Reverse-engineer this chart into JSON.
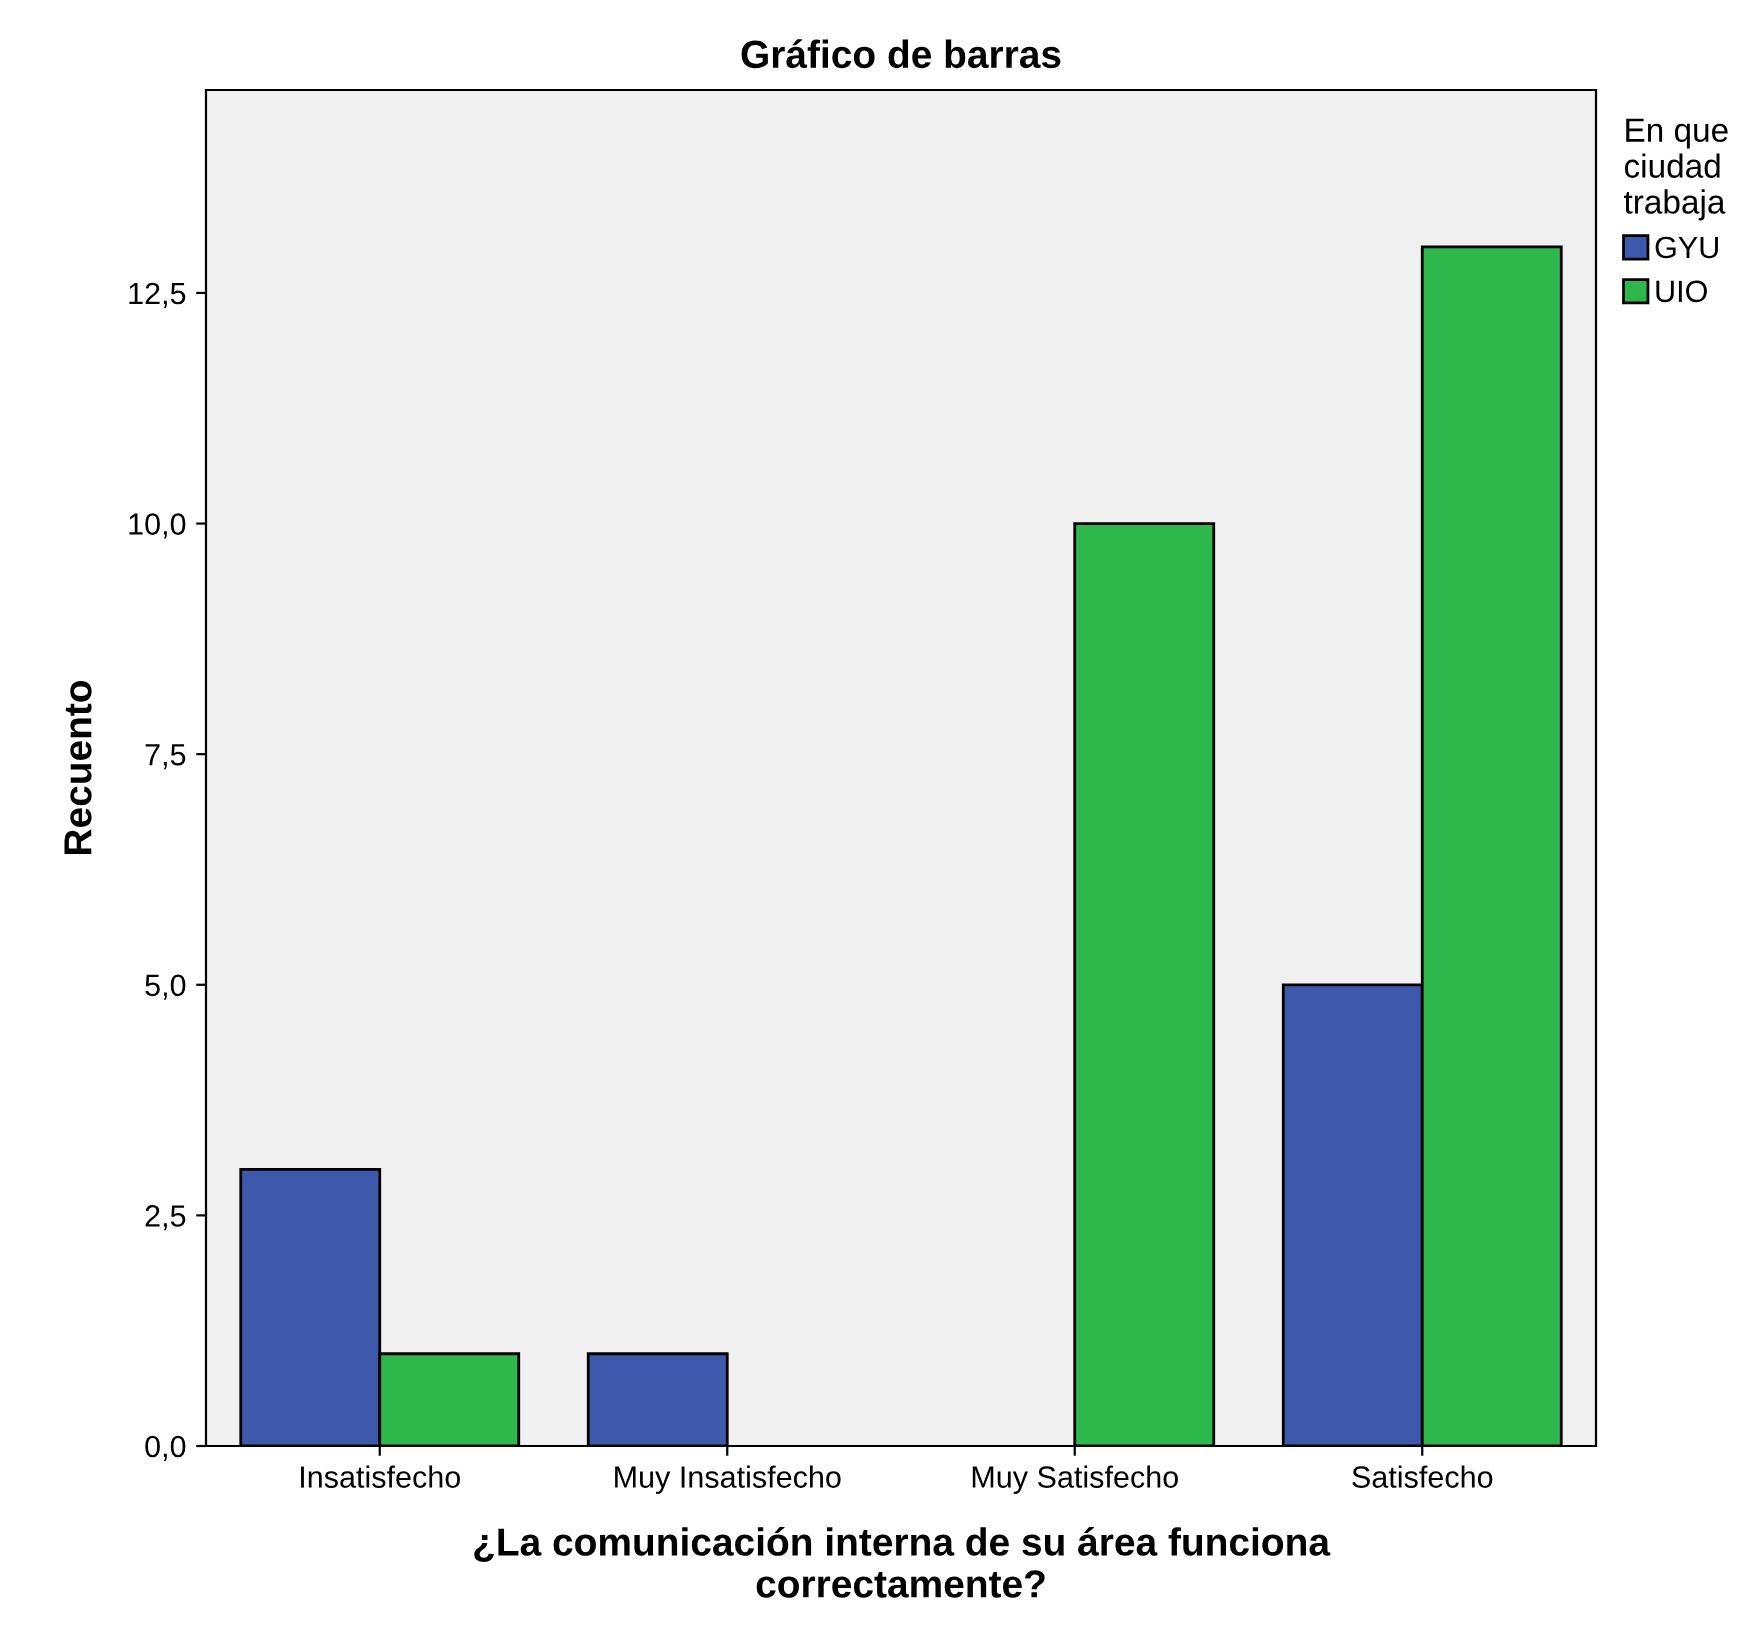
{
  "chart_data": {
    "type": "bar",
    "title": "Gráfico de barras",
    "xlabel": "¿La comunicación interna de su área funciona\ncorrectamente?",
    "ylabel": "Recuento",
    "legend_title": "En que\nciudad\ntrabaja",
    "categories": [
      "Insatisfecho",
      "Muy Insatisfecho",
      "Muy Satisfecho",
      "Satisfecho"
    ],
    "series": [
      {
        "name": "GYU",
        "color": "#3e58ac",
        "values": [
          3,
          1,
          null,
          5
        ]
      },
      {
        "name": "UIO",
        "color": "#2eb84b",
        "values": [
          1,
          null,
          10,
          13
        ]
      }
    ],
    "ylim": [
      0,
      14.7
    ],
    "yticks": [
      {
        "value": 0,
        "label": "0,0"
      },
      {
        "value": 2.5,
        "label": "2,5"
      },
      {
        "value": 5,
        "label": "5,0"
      },
      {
        "value": 7.5,
        "label": "7,5"
      },
      {
        "value": 10,
        "label": "10,0"
      },
      {
        "value": 12.5,
        "label": "12,5"
      }
    ],
    "grid": false,
    "legend": "top right"
  }
}
